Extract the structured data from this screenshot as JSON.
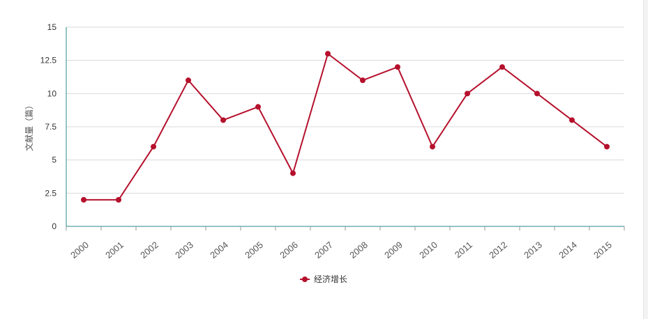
{
  "chart_data": {
    "type": "line",
    "title": "",
    "xlabel": "",
    "ylabel": "文献量（篇）",
    "categories": [
      "2000",
      "2001",
      "2002",
      "2003",
      "2004",
      "2005",
      "2006",
      "2007",
      "2008",
      "2009",
      "2010",
      "2011",
      "2012",
      "2013",
      "2014",
      "2015"
    ],
    "series": [
      {
        "name": "经济增长",
        "color": "#b5102c",
        "values": [
          2,
          2,
          6,
          11,
          8,
          9,
          4,
          13,
          11,
          12,
          6,
          10,
          12,
          10,
          8,
          6
        ]
      }
    ],
    "ylim": [
      0,
      15
    ],
    "yticks": [
      "0",
      "2.5",
      "5",
      "7.5",
      "10",
      "12.5",
      "15"
    ],
    "grid": true,
    "legend_position": "bottom-center",
    "axis_color": "#2a8a8a"
  }
}
